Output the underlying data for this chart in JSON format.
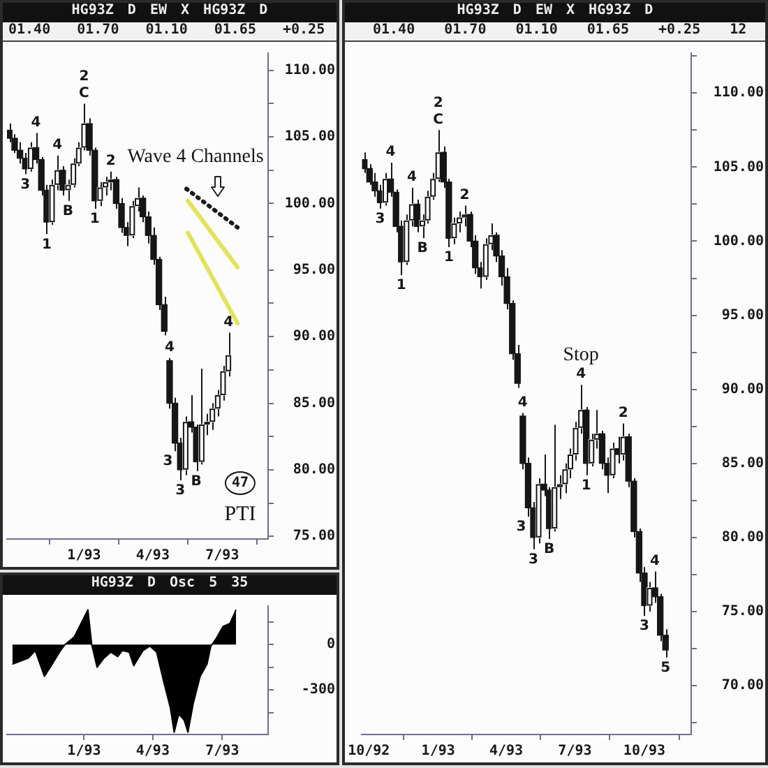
{
  "chart_data": [
    {
      "type": "candlestick",
      "title": "HG93Z D EW X HG93Z D",
      "subtitle": "01.40 01.70 01.10 01.65 +0.25",
      "color": "#161616",
      "colors": [
        "#161616",
        "#161616",
        "#161616",
        "#161616",
        "#ffffff",
        "#161616",
        "#161616",
        "#161616",
        "#ffffff",
        "#ffffff",
        "#161616",
        "#ffffff",
        "#ffffff",
        "#ffffff",
        "#ffffff",
        "#161616",
        "#161616",
        "#ffffff",
        "#ffffff",
        "#ffffff",
        "#161616",
        "#161616",
        "#161616",
        "#ffffff",
        "#ffffff",
        "#161616",
        "#161616",
        "#161616",
        "#161616",
        "#161616",
        "#161616",
        "#161616",
        "#161616",
        "#ffffff",
        "#161616",
        "#161616",
        "#ffffff",
        "#ffffff",
        "#ffffff",
        "#ffffff",
        "#ffffff",
        "#ffffff"
      ],
      "x": [
        "1992-09-25",
        "1992-10-02",
        "1992-10-09",
        "1992-10-16",
        "1992-10-23",
        "1992-10-30",
        "1992-11-06",
        "1992-11-13",
        "1992-11-20",
        "1992-11-27",
        "1992-12-04",
        "1992-12-11",
        "1992-12-18",
        "1992-12-25",
        "1993-01-01",
        "1993-01-08",
        "1993-01-15",
        "1993-01-22",
        "1993-01-29",
        "1993-02-05",
        "1993-02-12",
        "1993-02-19",
        "1993-02-26",
        "1993-03-05",
        "1993-03-12",
        "1993-03-19",
        "1993-03-26",
        "1993-04-02",
        "1993-04-09",
        "1993-04-16",
        "1993-04-23",
        "1993-04-30",
        "1993-05-07",
        "1993-05-14",
        "1993-05-21",
        "1993-05-28",
        "1993-06-04",
        "1993-06-11",
        "1993-06-18",
        "1993-06-25",
        "1993-07-02",
        "1993-07-09"
      ],
      "ohlc": [
        [
          105.5,
          106.0,
          104.6,
          104.9
        ],
        [
          104.9,
          105.2,
          103.8,
          104.0
        ],
        [
          104.0,
          104.6,
          103.0,
          103.4
        ],
        [
          103.4,
          103.8,
          102.2,
          102.6
        ],
        [
          102.6,
          104.6,
          102.4,
          104.2
        ],
        [
          104.2,
          105.3,
          103.0,
          103.3
        ],
        [
          103.3,
          103.5,
          100.6,
          101.0
        ],
        [
          101.0,
          101.4,
          97.7,
          98.6
        ],
        [
          98.6,
          101.8,
          98.4,
          101.4
        ],
        [
          101.4,
          103.6,
          101.0,
          102.5
        ],
        [
          102.5,
          102.8,
          100.6,
          101.0
        ],
        [
          101.0,
          101.8,
          100.2,
          101.4
        ],
        [
          101.4,
          103.4,
          101.2,
          103.0
        ],
        [
          103.0,
          104.6,
          102.8,
          104.2
        ],
        [
          104.2,
          107.5,
          104.0,
          106.0
        ],
        [
          106.0,
          106.4,
          103.6,
          104.0
        ],
        [
          104.0,
          104.2,
          99.6,
          100.2
        ],
        [
          100.2,
          101.6,
          99.8,
          101.2
        ],
        [
          101.2,
          102.0,
          100.6,
          101.6
        ],
        [
          101.6,
          102.4,
          101.0,
          101.8
        ],
        [
          101.8,
          102.0,
          99.6,
          100.0
        ],
        [
          100.0,
          100.4,
          97.8,
          98.2
        ],
        [
          98.2,
          98.6,
          96.8,
          97.6
        ],
        [
          97.6,
          100.2,
          97.4,
          99.8
        ],
        [
          99.8,
          101.2,
          99.4,
          100.4
        ],
        [
          100.4,
          100.6,
          98.6,
          99.0
        ],
        [
          99.0,
          99.4,
          97.0,
          97.6
        ],
        [
          97.6,
          98.2,
          95.4,
          95.8
        ],
        [
          95.8,
          96.0,
          92.0,
          92.4
        ],
        [
          92.4,
          93.0,
          90.1,
          90.4
        ],
        [
          88.2,
          88.4,
          84.6,
          85.0
        ],
        [
          85.0,
          85.4,
          81.4,
          82.0
        ],
        [
          82.0,
          82.4,
          79.2,
          80.0
        ],
        [
          80.0,
          84.0,
          79.6,
          83.6
        ],
        [
          83.6,
          85.6,
          82.8,
          83.2
        ],
        [
          83.2,
          83.4,
          79.9,
          80.6
        ],
        [
          80.6,
          87.6,
          80.4,
          83.4
        ],
        [
          83.4,
          84.2,
          82.6,
          83.6
        ],
        [
          83.6,
          85.0,
          83.0,
          84.6
        ],
        [
          84.6,
          86.0,
          84.0,
          85.6
        ],
        [
          85.6,
          87.8,
          85.2,
          87.4
        ],
        [
          87.4,
          90.3,
          87.0,
          88.6
        ]
      ],
      "series": [
        {
          "type": "line",
          "x": [
            "1993-05-15",
            "1993-07-21"
          ],
          "values": [
            101.1,
            98.2
          ],
          "color": "#1a1a1a",
          "line_style": "dotted"
        },
        {
          "type": "line",
          "x": [
            "1993-05-17",
            "1993-07-21"
          ],
          "values": [
            100.2,
            95.2
          ],
          "color": "#e3e35a",
          "line_style": "solid"
        },
        {
          "type": "line",
          "x": [
            "1993-05-17",
            "1993-07-21"
          ],
          "values": [
            97.8,
            91.0
          ],
          "color": "#e3e35a",
          "line_style": "solid"
        }
      ],
      "xlim": [
        "1992-09-22",
        "1993-08-30"
      ],
      "xticks": [
        {
          "value": "1993-01-01",
          "label": "1/93"
        },
        {
          "value": "1993-04-01",
          "label": "4/93"
        },
        {
          "value": "1993-07-01",
          "label": "7/93"
        }
      ],
      "ylim": [
        74.8,
        111.3
      ],
      "yticks": [
        {
          "value": 110,
          "label": "110.00"
        },
        {
          "value": 107.5,
          "label": null
        },
        {
          "value": 105,
          "label": "105.00"
        },
        {
          "value": 102.5,
          "label": null
        },
        {
          "value": 100,
          "label": "100.00"
        },
        {
          "value": 97.5,
          "label": null
        },
        {
          "value": 95,
          "label": "95.00"
        },
        {
          "value": 92.5,
          "label": null
        },
        {
          "value": 90,
          "label": "90.00"
        },
        {
          "value": 87.5,
          "label": null
        },
        {
          "value": 85,
          "label": "85.00"
        },
        {
          "value": 82.5,
          "label": null
        },
        {
          "value": 80,
          "label": "80.00"
        },
        {
          "value": 77.5,
          "label": null
        },
        {
          "value": 75,
          "label": "75.00"
        }
      ],
      "annotations": [
        {
          "text": "4",
          "x": "1992-10-30",
          "y": 105.3
        },
        {
          "text": "3",
          "x": "1992-10-16",
          "y": 102.2
        },
        {
          "text": "1",
          "x": "1992-11-13",
          "y": 97.7
        },
        {
          "text": "4",
          "x": "1992-11-27",
          "y": 103.6
        },
        {
          "text": "B",
          "x": "1992-12-11",
          "y": 100.2
        },
        {
          "text": "C",
          "x": "1993-01-01",
          "y": 107.5
        },
        {
          "text": "2",
          "x": "1993-01-01",
          "y": 107.5
        },
        {
          "text": "1",
          "x": "1993-01-15",
          "y": 99.6
        },
        {
          "text": "2",
          "x": "1993-02-05",
          "y": 102.4
        },
        {
          "text": "4",
          "x": "1993-04-23",
          "y": 88.4
        },
        {
          "text": "3",
          "x": "1993-04-30",
          "y": 81.4
        },
        {
          "text": "3",
          "x": "1993-05-07",
          "y": 79.2
        },
        {
          "text": "B",
          "x": "1993-05-28",
          "y": 79.9
        },
        {
          "text": "4",
          "x": "1993-07-09",
          "y": 90.3
        },
        "Wave 4 Channels",
        "47",
        "PTI"
      ]
    },
    {
      "type": "area",
      "title": "HG93Z D Osc 5 35",
      "color": "#000000",
      "x": [
        "1992-09-29",
        "1992-10-20",
        "1992-10-29",
        "1992-11-10",
        "1992-11-19",
        "1992-12-01",
        "1992-12-07",
        "1992-12-19",
        "1992-12-28",
        "1993-01-06",
        "1993-01-11",
        "1993-01-18",
        "1993-01-27",
        "1993-02-05",
        "1993-02-14",
        "1993-02-20",
        "1993-03-01",
        "1993-03-07",
        "1993-03-13",
        "1993-03-19",
        "1993-03-28",
        "1993-04-06",
        "1993-04-15",
        "1993-04-24",
        "1993-04-29",
        "1993-05-05",
        "1993-05-12",
        "1993-05-17",
        "1993-05-24",
        "1993-06-02",
        "1993-06-11",
        "1993-06-16",
        "1993-06-23",
        "1993-07-02",
        "1993-07-11",
        "1993-07-19"
      ],
      "values": [
        -130,
        -90,
        -40,
        -210,
        -140,
        -40,
        0,
        50,
        140,
        230,
        0,
        -150,
        -90,
        -50,
        -80,
        -40,
        -50,
        -140,
        -90,
        -40,
        -10,
        -50,
        -240,
        -420,
        -580,
        -460,
        -500,
        -580,
        -390,
        -210,
        -130,
        -10,
        40,
        120,
        140,
        230
      ],
      "xlim": [
        "1992-09-22",
        "1993-08-30"
      ],
      "xticks": [
        {
          "value": "1993-01-01",
          "label": "1/93"
        },
        {
          "value": "1993-04-01",
          "label": "4/93"
        },
        {
          "value": "1993-07-01",
          "label": "7/93"
        }
      ],
      "ylim": [
        -595,
        255
      ],
      "yticks": [
        {
          "value": 150,
          "label": null
        },
        0,
        {
          "value": -150,
          "label": null
        },
        -300,
        {
          "value": -450,
          "label": null
        }
      ]
    },
    {
      "type": "candlestick",
      "title": "HG93Z D EW X HG93Z D",
      "subtitle": "01.40 01.70 01.10 01.65 +0.25 12",
      "color": "#161616",
      "colors": [
        "#161616",
        "#161616",
        "#161616",
        "#161616",
        "#ffffff",
        "#161616",
        "#161616",
        "#161616",
        "#ffffff",
        "#ffffff",
        "#161616",
        "#ffffff",
        "#ffffff",
        "#ffffff",
        "#ffffff",
        "#161616",
        "#161616",
        "#ffffff",
        "#ffffff",
        "#ffffff",
        "#161616",
        "#161616",
        "#161616",
        "#ffffff",
        "#ffffff",
        "#161616",
        "#161616",
        "#161616",
        "#161616",
        "#161616",
        "#161616",
        "#161616",
        "#161616",
        "#ffffff",
        "#161616",
        "#161616",
        "#ffffff",
        "#ffffff",
        "#ffffff",
        "#ffffff",
        "#ffffff",
        "#ffffff",
        "#161616",
        "#ffffff",
        "#ffffff",
        "#161616",
        "#161616",
        "#ffffff",
        "#161616",
        "#ffffff",
        "#161616",
        "#161616",
        "#161616",
        "#161616",
        "#ffffff",
        "#161616",
        "#161616",
        "#161616"
      ],
      "x": [
        "1992-09-25",
        "1992-10-02",
        "1992-10-09",
        "1992-10-16",
        "1992-10-23",
        "1992-10-30",
        "1992-11-06",
        "1992-11-13",
        "1992-11-20",
        "1992-11-27",
        "1992-12-04",
        "1992-12-11",
        "1992-12-18",
        "1992-12-25",
        "1993-01-01",
        "1993-01-08",
        "1993-01-15",
        "1993-01-22",
        "1993-01-29",
        "1993-02-05",
        "1993-02-12",
        "1993-02-19",
        "1993-02-26",
        "1993-03-05",
        "1993-03-12",
        "1993-03-19",
        "1993-03-26",
        "1993-04-02",
        "1993-04-09",
        "1993-04-16",
        "1993-04-23",
        "1993-04-30",
        "1993-05-07",
        "1993-05-14",
        "1993-05-21",
        "1993-05-28",
        "1993-06-04",
        "1993-06-11",
        "1993-06-18",
        "1993-06-25",
        "1993-07-02",
        "1993-07-09",
        "1993-07-16",
        "1993-07-23",
        "1993-07-30",
        "1993-08-06",
        "1993-08-13",
        "1993-08-20",
        "1993-08-27",
        "1993-09-03",
        "1993-09-10",
        "1993-09-17",
        "1993-09-24",
        "1993-10-01",
        "1993-10-08",
        "1993-10-15",
        "1993-10-22",
        "1993-10-29"
      ],
      "ohlc": [
        [
          105.5,
          106.0,
          104.6,
          104.9
        ],
        [
          104.9,
          105.2,
          103.8,
          104.0
        ],
        [
          104.0,
          104.6,
          103.0,
          103.4
        ],
        [
          103.4,
          103.8,
          102.2,
          102.6
        ],
        [
          102.6,
          104.6,
          102.4,
          104.2
        ],
        [
          104.2,
          105.3,
          103.0,
          103.3
        ],
        [
          103.3,
          103.5,
          100.6,
          101.0
        ],
        [
          101.0,
          101.4,
          97.7,
          98.6
        ],
        [
          98.6,
          101.8,
          98.4,
          101.4
        ],
        [
          101.4,
          103.6,
          101.0,
          102.5
        ],
        [
          102.5,
          102.8,
          100.6,
          101.0
        ],
        [
          101.0,
          101.8,
          100.2,
          101.4
        ],
        [
          101.4,
          103.4,
          101.2,
          103.0
        ],
        [
          103.0,
          104.6,
          102.8,
          104.2
        ],
        [
          104.2,
          107.5,
          104.0,
          106.0
        ],
        [
          106.0,
          106.4,
          103.6,
          104.0
        ],
        [
          104.0,
          104.2,
          99.6,
          100.2
        ],
        [
          100.2,
          101.6,
          99.8,
          101.2
        ],
        [
          101.2,
          102.0,
          100.6,
          101.6
        ],
        [
          101.6,
          102.4,
          101.0,
          101.8
        ],
        [
          101.8,
          102.0,
          99.6,
          100.0
        ],
        [
          100.0,
          100.4,
          97.8,
          98.2
        ],
        [
          98.2,
          98.6,
          96.8,
          97.6
        ],
        [
          97.6,
          100.2,
          97.4,
          99.8
        ],
        [
          99.8,
          101.2,
          99.4,
          100.4
        ],
        [
          100.4,
          100.6,
          98.6,
          99.0
        ],
        [
          99.0,
          99.4,
          97.0,
          97.6
        ],
        [
          97.6,
          98.2,
          95.4,
          95.8
        ],
        [
          95.8,
          96.0,
          92.0,
          92.4
        ],
        [
          92.4,
          93.0,
          90.1,
          90.4
        ],
        [
          88.2,
          88.4,
          84.6,
          85.0
        ],
        [
          85.0,
          85.4,
          81.4,
          82.0
        ],
        [
          82.0,
          82.4,
          79.2,
          80.0
        ],
        [
          80.0,
          84.0,
          79.6,
          83.6
        ],
        [
          83.6,
          85.6,
          82.8,
          83.2
        ],
        [
          83.2,
          83.4,
          79.9,
          80.6
        ],
        [
          80.6,
          87.6,
          80.4,
          83.4
        ],
        [
          83.4,
          84.2,
          82.6,
          83.6
        ],
        [
          83.6,
          85.0,
          83.0,
          84.6
        ],
        [
          84.6,
          86.0,
          84.0,
          85.6
        ],
        [
          85.6,
          87.8,
          85.2,
          87.4
        ],
        [
          87.4,
          90.3,
          87.0,
          88.6
        ],
        [
          88.6,
          88.8,
          84.2,
          85.0
        ],
        [
          85.0,
          87.0,
          84.8,
          86.6
        ],
        [
          86.6,
          88.6,
          86.0,
          87.0
        ],
        [
          87.0,
          87.2,
          84.6,
          85.0
        ],
        [
          85.0,
          85.4,
          83.0,
          84.2
        ],
        [
          84.2,
          86.4,
          84.0,
          86.0
        ],
        [
          86.0,
          86.8,
          85.0,
          85.6
        ],
        [
          85.6,
          87.7,
          85.2,
          86.8
        ],
        [
          86.8,
          87.0,
          83.4,
          83.8
        ],
        [
          83.8,
          84.0,
          80.0,
          80.4
        ],
        [
          80.4,
          80.6,
          77.0,
          77.6
        ],
        [
          77.6,
          78.0,
          74.7,
          75.4
        ],
        [
          75.4,
          77.0,
          75.0,
          76.6
        ],
        [
          76.6,
          77.7,
          75.6,
          76.0
        ],
        [
          76.0,
          76.2,
          73.0,
          73.4
        ],
        [
          73.4,
          73.8,
          71.9,
          72.4
        ]
      ],
      "xlim": [
        "1992-09-22",
        "1993-12-02"
      ],
      "xticks": [
        {
          "value": "1992-10-01",
          "label": "10/92"
        },
        {
          "value": "1993-01-01",
          "label": "1/93"
        },
        {
          "value": "1993-04-01",
          "label": "4/93"
        },
        {
          "value": "1993-07-01",
          "label": "7/93"
        },
        {
          "value": "1993-10-01",
          "label": "10/93"
        }
      ],
      "ylim": [
        66.7,
        112.7
      ],
      "yticks": [
        {
          "value": 112.5,
          "label": null
        },
        {
          "value": 110,
          "label": "110.00"
        },
        {
          "value": 107.5,
          "label": null
        },
        {
          "value": 105,
          "label": "105.00"
        },
        {
          "value": 102.5,
          "label": null
        },
        {
          "value": 100,
          "label": "100.00"
        },
        {
          "value": 97.5,
          "label": null
        },
        {
          "value": 95,
          "label": "95.00"
        },
        {
          "value": 92.5,
          "label": null
        },
        {
          "value": 90,
          "label": "90.00"
        },
        {
          "value": 87.5,
          "label": null
        },
        {
          "value": 85,
          "label": "85.00"
        },
        {
          "value": 82.5,
          "label": null
        },
        {
          "value": 80,
          "label": "80.00"
        },
        {
          "value": 77.5,
          "label": null
        },
        {
          "value": 75,
          "label": "75.00"
        },
        {
          "value": 72.5,
          "label": null
        },
        {
          "value": 70,
          "label": "70.00"
        },
        {
          "value": 67.5,
          "label": null
        }
      ],
      "annotations": [
        {
          "text": "4",
          "x": "1992-10-30",
          "y": 105.3
        },
        {
          "text": "3",
          "x": "1992-10-16",
          "y": 102.2
        },
        {
          "text": "1",
          "x": "1992-11-13",
          "y": 97.7
        },
        {
          "text": "4",
          "x": "1992-11-27",
          "y": 103.6
        },
        {
          "text": "B",
          "x": "1992-12-11",
          "y": 100.2
        },
        {
          "text": "C",
          "x": "1993-01-01",
          "y": 107.5
        },
        {
          "text": "2",
          "x": "1993-01-01",
          "y": 107.5
        },
        {
          "text": "1",
          "x": "1993-01-15",
          "y": 99.6
        },
        {
          "text": "2",
          "x": "1993-02-05",
          "y": 102.4
        },
        {
          "text": "4",
          "x": "1993-04-23",
          "y": 88.4
        },
        {
          "text": "3",
          "x": "1993-04-30",
          "y": 81.4
        },
        {
          "text": "3",
          "x": "1993-05-07",
          "y": 79.2
        },
        {
          "text": "B",
          "x": "1993-05-28",
          "y": 79.9
        },
        {
          "text": "4",
          "x": "1993-07-09",
          "y": 90.3
        },
        {
          "text": "Stop",
          "x": "1993-07-09",
          "y": 90.3
        },
        {
          "text": "1",
          "x": "1993-07-16",
          "y": 84.2
        },
        {
          "text": "2",
          "x": "1993-09-03",
          "y": 87.7
        },
        {
          "text": "3",
          "x": "1993-10-01",
          "y": 74.7
        },
        {
          "text": "4",
          "x": "1993-10-15",
          "y": 77.7
        },
        {
          "text": "5",
          "x": "1993-10-29",
          "y": 71.9
        }
      ]
    }
  ]
}
